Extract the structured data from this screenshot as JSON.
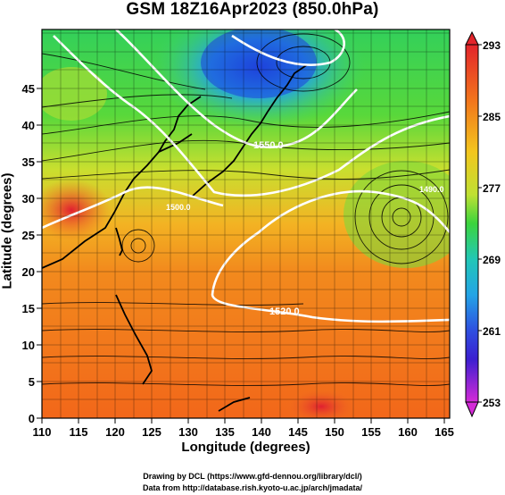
{
  "title": "GSM 18Z16Apr2023 (850.0hPa)",
  "xaxis": {
    "label": "Longitude (degrees)",
    "ticks": [
      "110",
      "115",
      "120",
      "125",
      "130",
      "135",
      "140",
      "145",
      "150",
      "155",
      "160",
      "165"
    ]
  },
  "yaxis": {
    "label": "Latitude  (degrees)",
    "ticks": [
      "0",
      "5",
      "10",
      "15",
      "20",
      "25",
      "30",
      "35",
      "40",
      "45"
    ]
  },
  "colorbar": {
    "ticks": [
      "253",
      "261",
      "269",
      "277",
      "285",
      "293"
    ]
  },
  "contour_labels": [
    "1520.0",
    "1550.0",
    "1500.0",
    "1490.0"
  ],
  "footer": {
    "line1": "Drawing by DCL (https://www.gfd-dennou.org/library/dcl/)",
    "line2": "Data from http://database.rish.kyoto-u.ac.jp/arch/jmadata/"
  }
}
